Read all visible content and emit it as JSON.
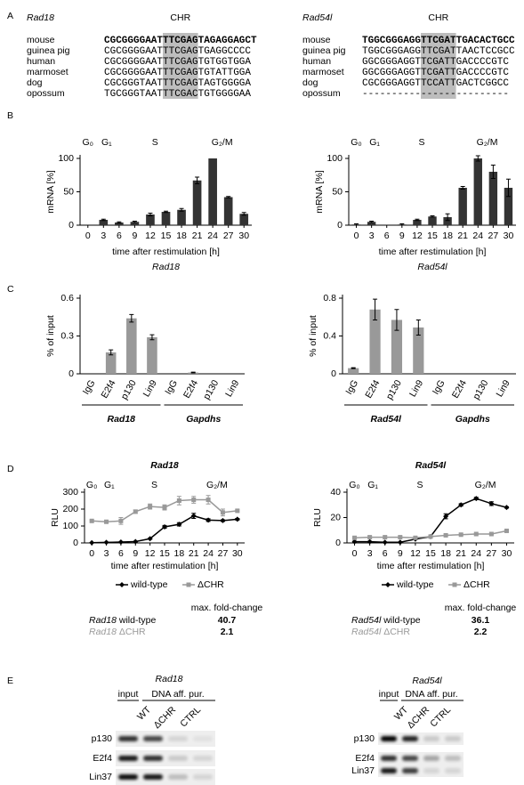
{
  "panel_labels": [
    "A",
    "B",
    "C",
    "D",
    "E"
  ],
  "alignments": [
    {
      "gene": "Rad18",
      "motif": "CHR",
      "rows": [
        {
          "species": "mouse",
          "sequence": "CGCGGGGAATTTCGAGTAGAGGAGCT"
        },
        {
          "species": "guinea pig",
          "sequence": "CGCGGGGAATTTCGAGTGAGGCCCC"
        },
        {
          "species": "human",
          "sequence": "CGCGGGGAATTTCGAGTGTGGTGGA"
        },
        {
          "species": "marmoset",
          "sequence": "CGCGGGGAATTTCGAGTGTATTGGA"
        },
        {
          "species": "dog",
          "sequence": "CGCGGGTAATTTCGAGTAGTGGGGA"
        },
        {
          "species": "opossum",
          "sequence": "TGCGGGTAATTTCGACTGTGGGGAA"
        }
      ]
    },
    {
      "gene": "Rad54l",
      "motif": "CHR",
      "rows": [
        {
          "species": "mouse",
          "sequence": "TGGCGGGAGGTTCGATTGACACTGCC"
        },
        {
          "species": "guinea pig",
          "sequence": "TGGCGGGAGGTTCGATTAACTCCGCC"
        },
        {
          "species": "human",
          "sequence": "GGCGGGAGGTTCGATTGACCCCGTC"
        },
        {
          "species": "marmoset",
          "sequence": "GGCGGGAGGTTCGATTGACCCCGTC"
        },
        {
          "species": "dog",
          "sequence": "CGCGGGAGGTTCCATTGACTCGGCC"
        },
        {
          "species": "opossum",
          "sequence": "-------------------------"
        }
      ]
    }
  ],
  "chart_data": [
    {
      "type": "bar",
      "title": "Rad18",
      "ylabel": "mRNA [%]",
      "xlabel": "time after restimulation [h]",
      "phases": [
        "G₀",
        "G₁",
        "S",
        "G₂/M"
      ],
      "categories": [
        0,
        3,
        6,
        9,
        12,
        15,
        18,
        21,
        24,
        27,
        30
      ],
      "values": [
        0,
        8,
        4,
        5,
        16,
        20,
        23,
        67,
        100,
        42,
        17
      ],
      "errors": [
        0,
        1,
        1,
        1,
        2,
        1,
        2,
        5,
        0,
        1,
        2
      ],
      "color": "#333333",
      "ylim": [
        0,
        100
      ],
      "yticks": [
        0,
        50,
        100
      ]
    },
    {
      "type": "bar",
      "title": "Rad54l",
      "ylabel": "mRNA [%]",
      "xlabel": "time after restimulation [h]",
      "phases": [
        "G₀",
        "G₁",
        "S",
        "G₂/M"
      ],
      "categories": [
        0,
        3,
        6,
        9,
        12,
        15,
        18,
        21,
        24,
        27,
        30
      ],
      "values": [
        1,
        5,
        0,
        1,
        8,
        13,
        12,
        56,
        100,
        80,
        56
      ],
      "errors": [
        1,
        1,
        0,
        1,
        1,
        1,
        5,
        2,
        4,
        10,
        13
      ],
      "color": "#333333",
      "ylim": [
        0,
        100
      ],
      "yticks": [
        0,
        50,
        100
      ]
    },
    {
      "type": "bar",
      "ylabel": "% of input",
      "groups": [
        "Rad18",
        "Gapdhs"
      ],
      "categories": [
        "IgG",
        "E2f4",
        "p130",
        "Lin9",
        "IgG",
        "E2f4",
        "p130",
        "Lin9"
      ],
      "values": [
        0,
        0.17,
        0.44,
        0.29,
        0,
        0.01,
        0,
        0
      ],
      "errors": [
        0,
        0.02,
        0.03,
        0.02,
        0,
        0.003,
        0,
        0
      ],
      "color": "#999999",
      "ylim": [
        0,
        0.6
      ],
      "yticks": [
        0,
        0.3,
        0.6
      ]
    },
    {
      "type": "bar",
      "ylabel": "% of input",
      "groups": [
        "Rad54l",
        "Gapdhs"
      ],
      "categories": [
        "IgG",
        "E2f4",
        "p130",
        "Lin9",
        "IgG",
        "E2f4",
        "p130",
        "Lin9"
      ],
      "values": [
        0.06,
        0.68,
        0.57,
        0.49,
        0,
        0,
        0,
        0
      ],
      "errors": [
        0.005,
        0.11,
        0.11,
        0.08,
        0,
        0,
        0,
        0
      ],
      "color": "#999999",
      "ylim": [
        0,
        0.8
      ],
      "yticks": [
        0,
        0.4,
        0.8
      ]
    },
    {
      "type": "line",
      "title": "Rad18",
      "ylabel": "RLU",
      "xlabel": "time after restimulation [h]",
      "phases": [
        "G₀",
        "G₁",
        "S",
        "G₂/M"
      ],
      "categories": [
        0,
        3,
        6,
        9,
        12,
        15,
        18,
        21,
        24,
        27,
        30
      ],
      "series": [
        {
          "name": "wild-type",
          "color": "#000000",
          "values": [
            1,
            3,
            5,
            8,
            25,
            95,
            110,
            160,
            135,
            132,
            140
          ],
          "errors": [
            1,
            1,
            1,
            2,
            3,
            8,
            10,
            15,
            8,
            5,
            5
          ]
        },
        {
          "name": "ΔCHR",
          "color": "#999999",
          "values": [
            130,
            125,
            130,
            185,
            215,
            210,
            250,
            255,
            255,
            180,
            190
          ],
          "errors": [
            5,
            8,
            20,
            10,
            15,
            15,
            25,
            20,
            25,
            20,
            5
          ]
        }
      ],
      "ylim": [
        0,
        300
      ],
      "yticks": [
        0,
        100,
        200,
        300
      ]
    },
    {
      "type": "line",
      "title": "Rad54l",
      "ylabel": "RLU",
      "xlabel": "time after restimulation [h]",
      "phases": [
        "G₀",
        "G₁",
        "S",
        "G₂/M"
      ],
      "categories": [
        0,
        3,
        6,
        9,
        12,
        15,
        18,
        21,
        24,
        27,
        30
      ],
      "series": [
        {
          "name": "wild-type",
          "color": "#000000",
          "values": [
            1,
            1,
            0.5,
            0.5,
            3,
            5,
            21,
            30,
            35,
            31,
            28
          ],
          "errors": [
            0.3,
            0.3,
            0.2,
            0.2,
            0.5,
            0.5,
            2,
            1,
            1,
            1.5,
            0.5
          ]
        },
        {
          "name": "ΔCHR",
          "color": "#999999",
          "values": [
            4,
            4.5,
            4.5,
            4.5,
            4,
            5,
            6,
            6.5,
            7,
            7,
            9.5
          ],
          "errors": [
            0.3,
            0.3,
            0.3,
            0.3,
            0.3,
            0.3,
            0.5,
            0.5,
            0.5,
            0.5,
            0.5
          ]
        }
      ],
      "ylim": [
        0,
        40
      ],
      "yticks": [
        0,
        20,
        40
      ]
    }
  ],
  "fold_change": [
    {
      "header": "max. fold-change",
      "rows": [
        {
          "gene": "Rad18",
          "label": "wild-type",
          "value": 40.7
        },
        {
          "gene": "Rad18",
          "label": "ΔCHR",
          "value": 2.1
        }
      ]
    },
    {
      "header": "max. fold-change",
      "rows": [
        {
          "gene": "Rad54l",
          "label": "wild-type",
          "value": 36.1
        },
        {
          "gene": "Rad54l",
          "label": "ΔCHR",
          "value": 2.2
        }
      ]
    }
  ],
  "blots": [
    {
      "gene": "Rad18",
      "groups": [
        "input",
        "DNA aff. pur."
      ],
      "lanes": [
        "WT",
        "ΔCHR",
        "CTRL"
      ],
      "proteins": [
        "p130",
        "E2f4",
        "Lin37"
      ]
    },
    {
      "gene": "Rad54l",
      "groups": [
        "input",
        "DNA aff. pur."
      ],
      "lanes": [
        "WT",
        "ΔCHR",
        "CTRL"
      ],
      "proteins": [
        "p130",
        "E2f4",
        "Lin37"
      ]
    }
  ]
}
